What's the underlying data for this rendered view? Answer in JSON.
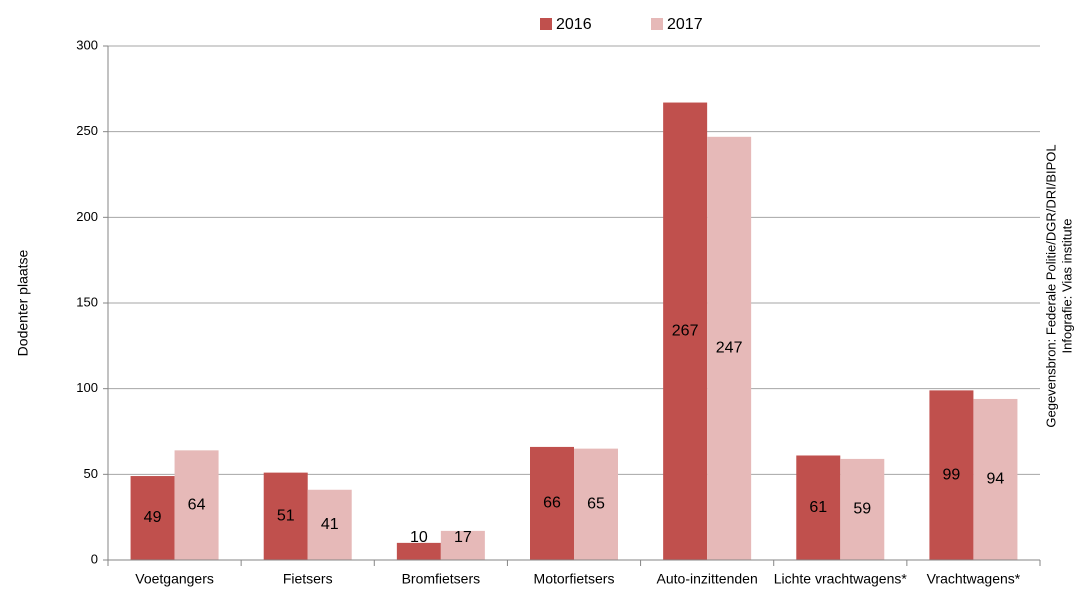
{
  "chart_data": {
    "type": "bar",
    "y_label": "Dodenter plaatse",
    "annotations": [
      "Gegevensbron: Federale Politie/DGR/DRI/BIPOL",
      "Infografie: Vias institute"
    ],
    "categories": [
      "Voetgangers",
      "Fietsers",
      "Bromfietsers",
      "Motorfietsers",
      "Auto-inzittenden",
      "Lichte vrachtwagens*",
      "Vrachtwagens*"
    ],
    "series": [
      {
        "name": "2016",
        "color": "#c0504d",
        "values": [
          49,
          51,
          10,
          66,
          267,
          61,
          99
        ]
      },
      {
        "name": "2017",
        "color": "#e6b9b8",
        "values": [
          64,
          41,
          17,
          65,
          247,
          59,
          94
        ]
      }
    ],
    "ylim": [
      0,
      300
    ],
    "yticks": [
      0,
      50,
      100,
      150,
      200,
      250,
      300
    ],
    "grid": true,
    "legend": "top"
  }
}
